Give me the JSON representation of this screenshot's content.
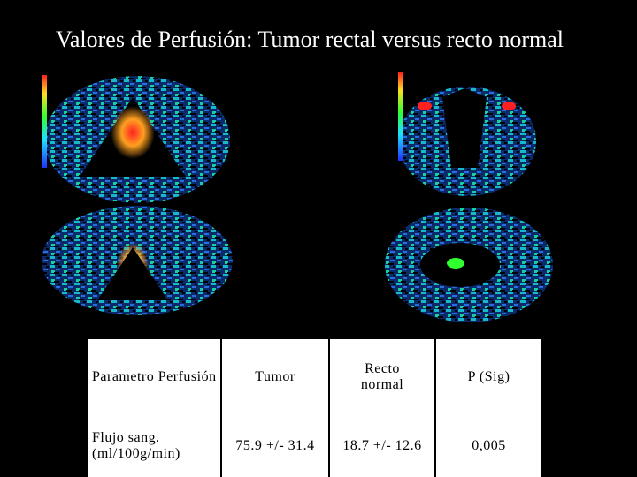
{
  "title": "Valores de Perfusión: Tumor rectal versus recto normal",
  "table": {
    "header": [
      "Parametro Perfusión",
      "Tumor",
      "Recto normal",
      "P (Sig)"
    ],
    "rows": [
      [
        "Flujo sang. (ml/100g/min)",
        "75.9 +/- 31.4",
        "18.7 +/- 12.6",
        "0,005"
      ]
    ]
  }
}
